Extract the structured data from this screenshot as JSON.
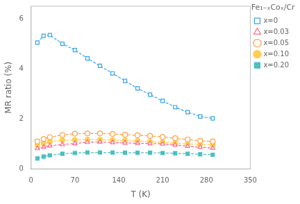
{
  "chart_data": {
    "type": "line",
    "xlabel": "T (K)",
    "ylabel": "MR ratio (%)",
    "xlim": [
      0,
      350
    ],
    "ylim": [
      0,
      6.5
    ],
    "xticks": [
      0,
      70,
      140,
      210,
      280,
      350
    ],
    "yticks": [
      0,
      2,
      4,
      6
    ],
    "grid": false,
    "legend": "upper right",
    "legend_title": "Fe₁₋ₓCoₓ/Cr",
    "line_style": "dashed",
    "series": [
      {
        "name": "x=0",
        "marker": "open-square",
        "x": [
          10,
          20,
          30,
          50,
          70,
          90,
          110,
          130,
          150,
          170,
          190,
          210,
          230,
          250,
          270,
          290
        ],
        "values": [
          5.05,
          5.32,
          5.35,
          5.0,
          4.75,
          4.42,
          4.12,
          3.82,
          3.52,
          3.22,
          2.97,
          2.72,
          2.47,
          2.27,
          2.1,
          2.02
        ]
      },
      {
        "name": "x=0.03",
        "marker": "open-triangle",
        "x": [
          10,
          20,
          30,
          50,
          70,
          90,
          110,
          130,
          150,
          170,
          190,
          210,
          230,
          250,
          270,
          290
        ],
        "values": [
          0.82,
          0.88,
          0.93,
          0.98,
          1.02,
          1.07,
          1.08,
          1.06,
          1.04,
          1.03,
          1.02,
          1.0,
          0.96,
          0.91,
          0.87,
          0.84
        ]
      },
      {
        "name": "x=0.05",
        "marker": "open-circle",
        "x": [
          10,
          20,
          30,
          50,
          70,
          90,
          110,
          130,
          150,
          170,
          190,
          210,
          230,
          250,
          270,
          290
        ],
        "values": [
          1.1,
          1.2,
          1.27,
          1.36,
          1.41,
          1.42,
          1.42,
          1.4,
          1.37,
          1.35,
          1.32,
          1.28,
          1.23,
          1.18,
          1.13,
          1.1
        ]
      },
      {
        "name": "x=0.10",
        "marker": "filled-circle",
        "x": [
          10,
          20,
          30,
          50,
          70,
          90,
          110,
          130,
          150,
          170,
          190,
          210,
          230,
          250,
          270,
          290
        ],
        "values": [
          0.95,
          1.03,
          1.09,
          1.15,
          1.16,
          1.17,
          1.17,
          1.16,
          1.14,
          1.12,
          1.09,
          1.07,
          1.03,
          1.0,
          0.98,
          0.96
        ]
      },
      {
        "name": "x=0.20",
        "marker": "filled-square",
        "x": [
          10,
          20,
          30,
          50,
          70,
          90,
          110,
          130,
          150,
          170,
          190,
          210,
          230,
          250,
          270,
          290
        ],
        "values": [
          0.42,
          0.5,
          0.55,
          0.61,
          0.64,
          0.66,
          0.66,
          0.66,
          0.65,
          0.65,
          0.65,
          0.64,
          0.63,
          0.61,
          0.59,
          0.57
        ]
      }
    ]
  }
}
